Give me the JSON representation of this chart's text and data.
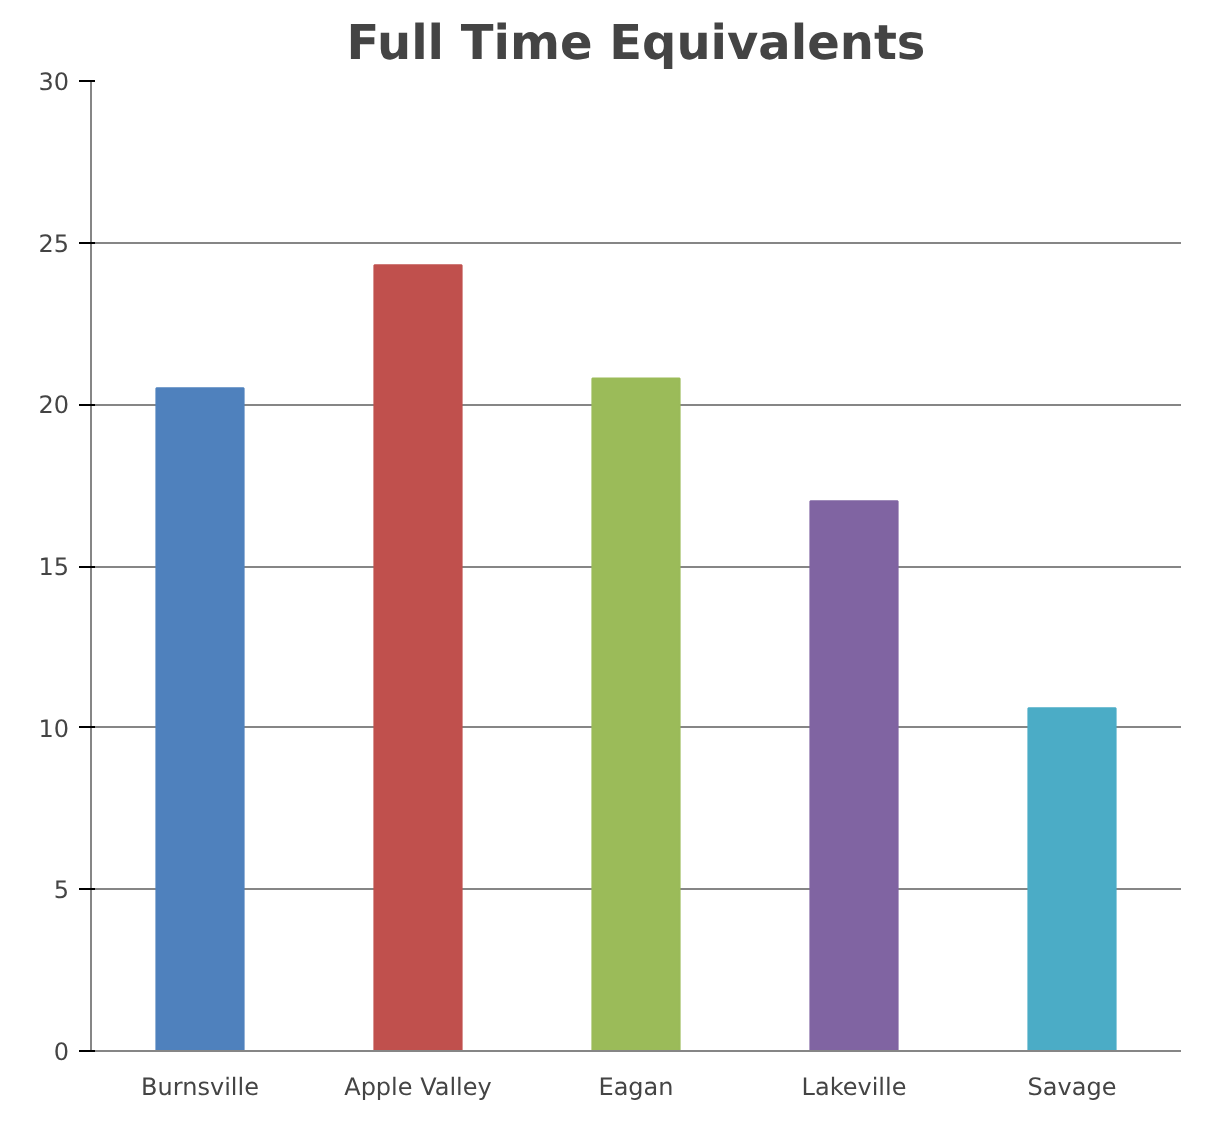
{
  "chart_data": {
    "type": "bar",
    "title": "Full Time Equivalents",
    "categories": [
      "Burnsville",
      "Apple Valley",
      "Eagan",
      "Lakeville",
      "Savage"
    ],
    "values": [
      20.5,
      24.3,
      20.8,
      17.0,
      10.6
    ],
    "colors": [
      "#4f81bd",
      "#c0504d",
      "#9bbb59",
      "#8064a2",
      "#4bacc6"
    ],
    "ylim": [
      0,
      30
    ],
    "yticks": [
      0,
      5,
      10,
      15,
      20,
      25,
      30
    ],
    "grid": "y"
  }
}
